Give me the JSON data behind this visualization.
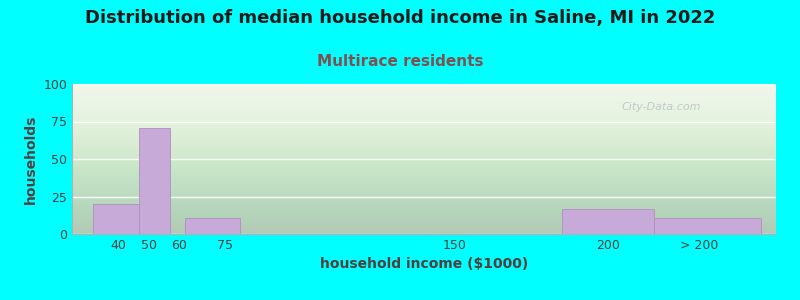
{
  "title": "Distribution of median household income in Saline, MI in 2022",
  "subtitle": "Multirace residents",
  "xlabel": "household income ($1000)",
  "ylabel": "households",
  "background_outer": "#00FFFF",
  "bar_color": "#c8aad8",
  "bar_edge_color": "#b090c0",
  "ylim": [
    0,
    100
  ],
  "yticks": [
    0,
    25,
    50,
    75,
    100
  ],
  "title_fontsize": 13,
  "subtitle_fontsize": 11,
  "subtitle_color": "#805050",
  "axis_label_fontsize": 10,
  "watermark": "City-Data.com",
  "xtick_positions": [
    40,
    50,
    60,
    75,
    150,
    200,
    230
  ],
  "xtick_labels": [
    "40",
    "50",
    "60",
    "75",
    "150",
    "200",
    "> 200"
  ],
  "bar_lefts": [
    32,
    47,
    57,
    62,
    130,
    185,
    215
  ],
  "bar_rights": [
    47,
    57,
    62,
    80,
    170,
    215,
    250
  ],
  "bar_heights": [
    20,
    71,
    0,
    11,
    0,
    17,
    11
  ],
  "xlim": [
    25,
    255
  ]
}
